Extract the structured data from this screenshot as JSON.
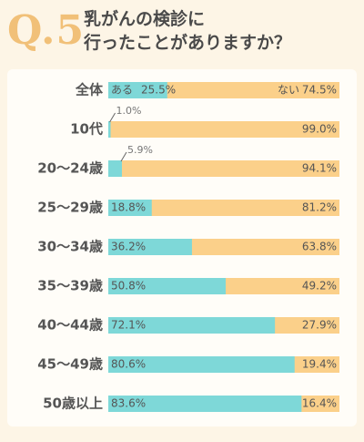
{
  "question": {
    "number": "Q.5",
    "line1": "乳がんの検診に",
    "line2": "行ったことがありますか？"
  },
  "colors": {
    "yes": "#7ed8d8",
    "no": "#fbd08a",
    "label": "#555555",
    "small": "#777777"
  },
  "chart_data": {
    "type": "bar",
    "stacked": true,
    "orientation": "horizontal",
    "categories": [
      "全体",
      "10代",
      "20〜24歳",
      "25〜29歳",
      "30〜34歳",
      "35〜39歳",
      "40〜44歳",
      "45〜49歳",
      "50歳以上"
    ],
    "series": [
      {
        "name": "ある",
        "values": [
          25.5,
          1.0,
          5.9,
          18.8,
          36.2,
          50.8,
          72.1,
          80.6,
          83.6
        ],
        "labels": [
          "25.5%",
          "1.0%",
          "5.9%",
          "18.8%",
          "36.2%",
          "50.8%",
          "72.1%",
          "80.6%",
          "83.6%"
        ]
      },
      {
        "name": "ない",
        "values": [
          74.5,
          99.0,
          94.1,
          81.2,
          63.8,
          49.2,
          27.9,
          19.4,
          16.4
        ],
        "labels": [
          "74.5%",
          "99.0%",
          "94.1%",
          "81.2%",
          "63.8%",
          "49.2%",
          "27.9%",
          "19.4%",
          "16.4%"
        ]
      }
    ],
    "xlim": [
      0,
      100
    ],
    "legend": "inline in first bar"
  }
}
